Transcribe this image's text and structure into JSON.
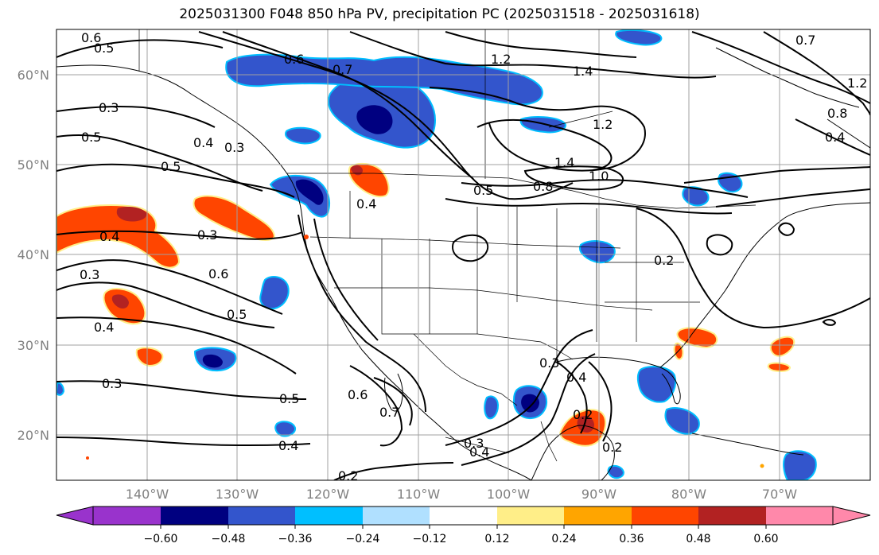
{
  "title": "2025031300 F048 850 hPa PV, precipitation PC (2025031518 - 2025031618)",
  "map": {
    "lon_range": [
      -150,
      -60
    ],
    "lat_range": [
      15,
      65
    ],
    "lat_ticks": [
      "60°N",
      "50°N",
      "40°N",
      "30°N",
      "20°N"
    ],
    "lon_ticks": [
      "140°W",
      "130°W",
      "120°W",
      "110°W",
      "100°W",
      "90°W",
      "80°W",
      "70°W"
    ],
    "gridlines": true
  },
  "colorbar": {
    "ticks": [
      "−0.60",
      "−0.48",
      "−0.36",
      "−0.24",
      "−0.12",
      "0.12",
      "0.24",
      "0.36",
      "0.48",
      "0.60"
    ],
    "colors": [
      "#9933cc",
      "#000080",
      "#3355cc",
      "#00bfff",
      "#b0e0ff",
      "#ffffff",
      "#ffee88",
      "#ffa500",
      "#ff4500",
      "#b22222",
      "#ff88aa"
    ]
  },
  "contour_labels": [
    {
      "text": "0.6"
    },
    {
      "text": "0.5"
    },
    {
      "text": "0.3"
    },
    {
      "text": "0.5"
    },
    {
      "text": "0.5"
    },
    {
      "text": "0.4"
    },
    {
      "text": "0.3"
    },
    {
      "text": "0.4"
    },
    {
      "text": "0.3"
    },
    {
      "text": "0.6"
    },
    {
      "text": "0.5"
    },
    {
      "text": "0.4"
    },
    {
      "text": "0.3"
    },
    {
      "text": "0.3"
    },
    {
      "text": "0.5"
    },
    {
      "text": "0.6"
    },
    {
      "text": "0.7"
    },
    {
      "text": "0.4"
    },
    {
      "text": "0.2"
    },
    {
      "text": "0.6"
    },
    {
      "text": "0.7"
    },
    {
      "text": "1.2"
    },
    {
      "text": "1.4"
    },
    {
      "text": "1.2"
    },
    {
      "text": "1.4"
    },
    {
      "text": "1.0"
    },
    {
      "text": "0.8"
    },
    {
      "text": "0.5"
    },
    {
      "text": "0.4"
    },
    {
      "text": "0.7"
    },
    {
      "text": "1.2"
    },
    {
      "text": "0.8"
    },
    {
      "text": "0.4"
    },
    {
      "text": "0.3"
    },
    {
      "text": "0.4"
    },
    {
      "text": "0.3"
    },
    {
      "text": "0.4"
    },
    {
      "text": "0.2"
    },
    {
      "text": "0.2"
    },
    {
      "text": "0.2"
    }
  ]
}
